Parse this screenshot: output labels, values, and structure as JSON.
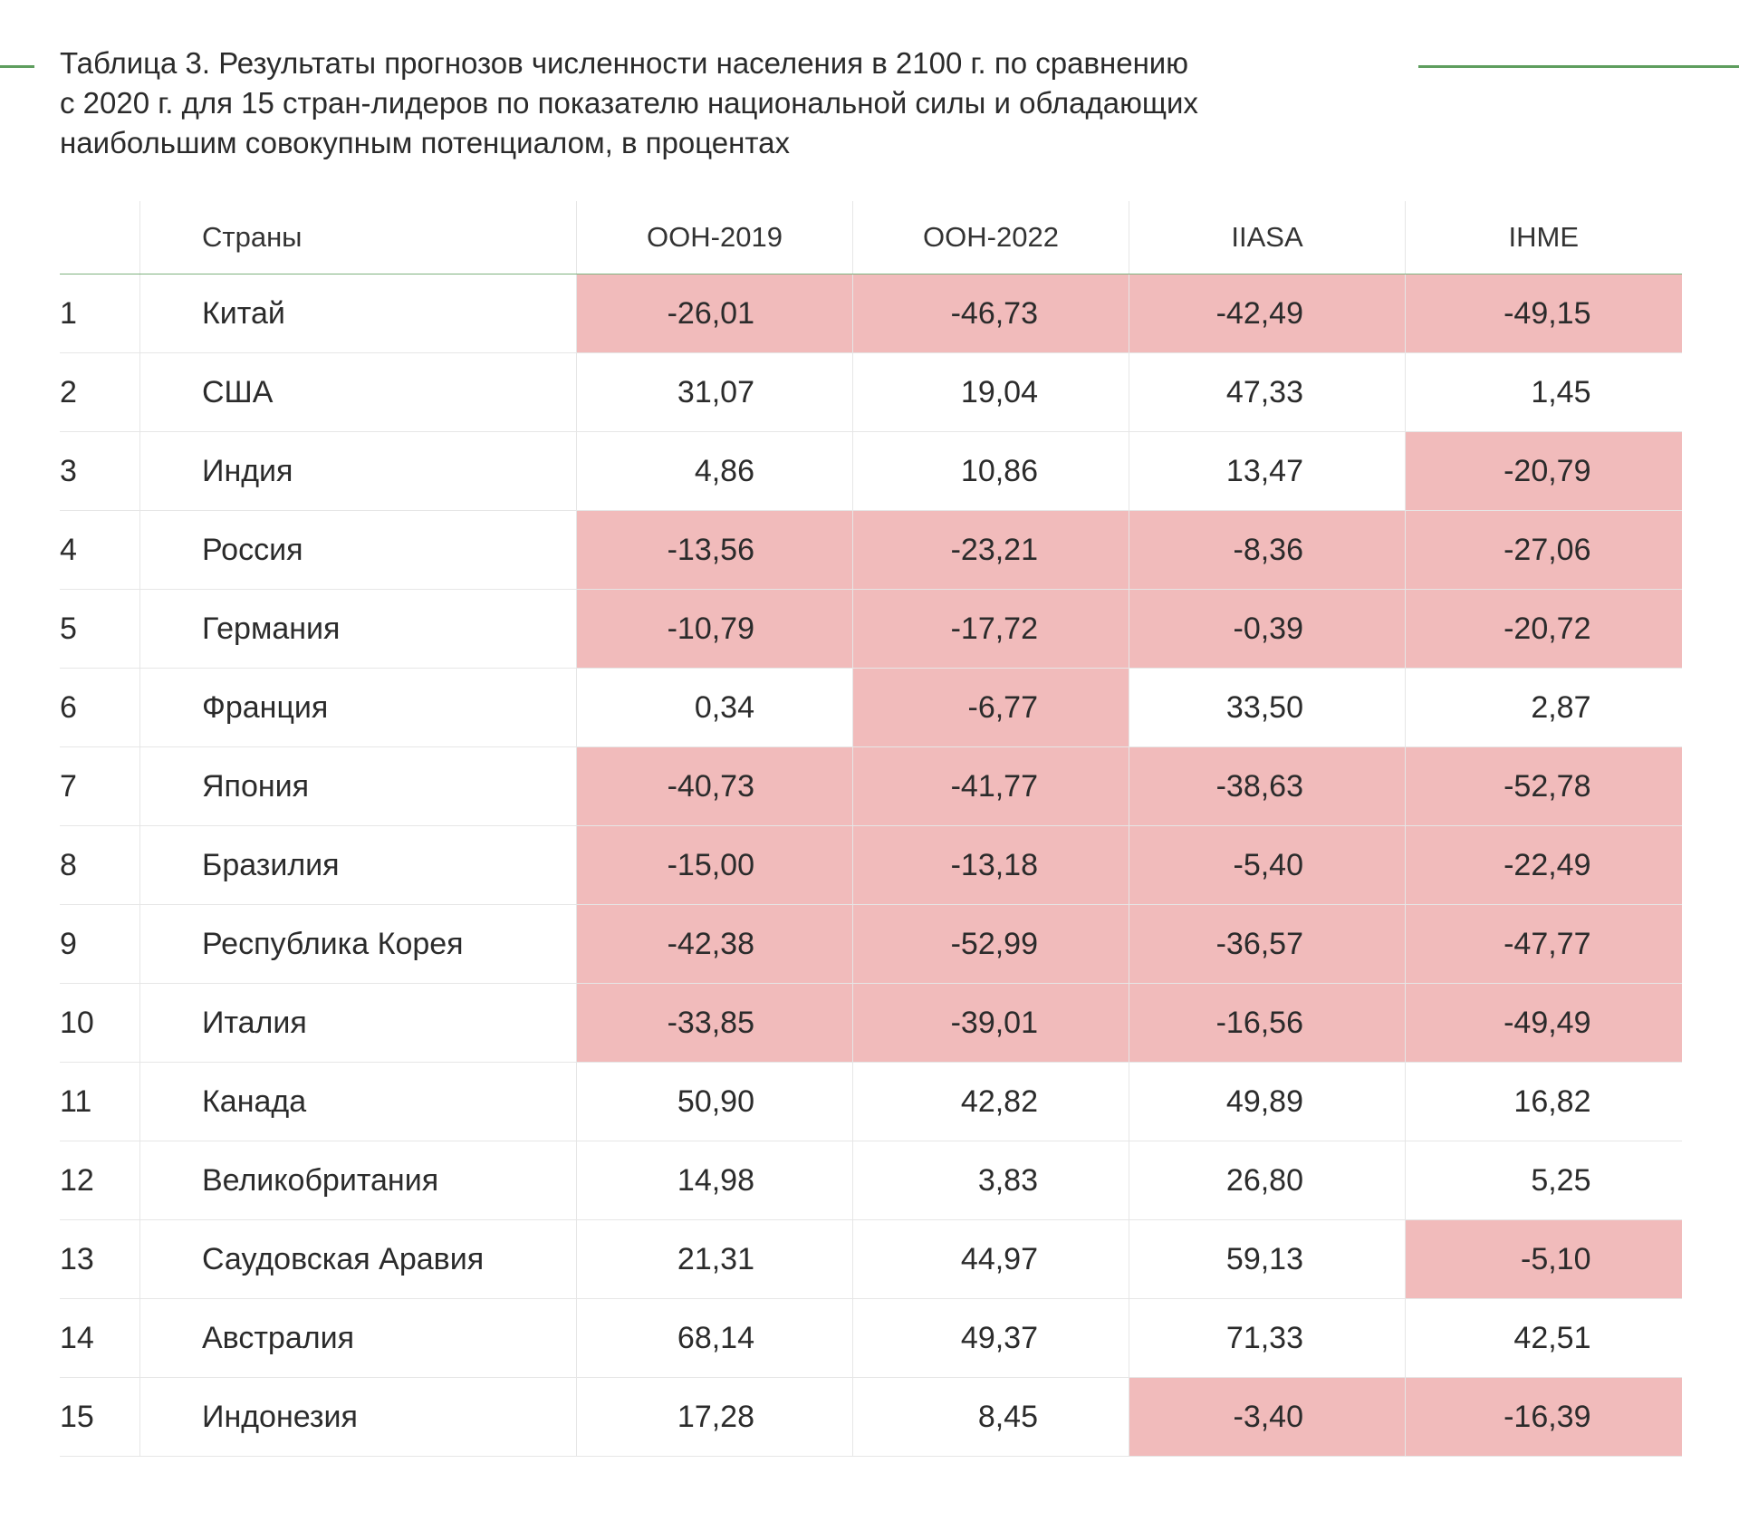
{
  "caption": {
    "line1": "Таблица 3. Результаты прогнозов численности населения в 2100 г. по сравнению",
    "line2": "с 2020 г. для 15 стран-лидеров по показателю национальной силы и обладающих",
    "line3": "наибольшим совокупным потенциалом, в процентах"
  },
  "colors": {
    "accent": "#5e9e5e",
    "negative_fill": "#f1bbbb",
    "grid": "#e6e6e6"
  },
  "table": {
    "headers": [
      "",
      "Страны",
      "ООН-2019",
      "ООН-2022",
      "IIASA",
      "IHME"
    ],
    "rows": [
      {
        "n": "1",
        "country": "Китай",
        "v": [
          "-26,01",
          "-46,73",
          "-42,49",
          "-49,15"
        ]
      },
      {
        "n": "2",
        "country": "США",
        "v": [
          "31,07",
          "19,04",
          "47,33",
          "1,45"
        ]
      },
      {
        "n": "3",
        "country": "Индия",
        "v": [
          "4,86",
          "10,86",
          "13,47",
          "-20,79"
        ]
      },
      {
        "n": "4",
        "country": "Россия",
        "v": [
          "-13,56",
          "-23,21",
          "-8,36",
          "-27,06"
        ]
      },
      {
        "n": "5",
        "country": "Германия",
        "v": [
          "-10,79",
          "-17,72",
          "-0,39",
          "-20,72"
        ]
      },
      {
        "n": "6",
        "country": "Франция",
        "v": [
          "0,34",
          "-6,77",
          "33,50",
          "2,87"
        ]
      },
      {
        "n": "7",
        "country": "Япония",
        "v": [
          "-40,73",
          "-41,77",
          "-38,63",
          "-52,78"
        ]
      },
      {
        "n": "8",
        "country": "Бразилия",
        "v": [
          "-15,00",
          "-13,18",
          "-5,40",
          "-22,49"
        ]
      },
      {
        "n": "9",
        "country": "Республика Корея",
        "v": [
          "-42,38",
          "-52,99",
          "-36,57",
          "-47,77"
        ]
      },
      {
        "n": "10",
        "country": "Италия",
        "v": [
          "-33,85",
          "-39,01",
          "-16,56",
          "-49,49"
        ]
      },
      {
        "n": "11",
        "country": "Канада",
        "v": [
          "50,90",
          "42,82",
          "49,89",
          "16,82"
        ]
      },
      {
        "n": "12",
        "country": "Великобритания",
        "v": [
          "14,98",
          "3,83",
          "26,80",
          "5,25"
        ]
      },
      {
        "n": "13",
        "country": "Саудовская Аравия",
        "v": [
          "21,31",
          "44,97",
          "59,13",
          "-5,10"
        ]
      },
      {
        "n": "14",
        "country": "Австралия",
        "v": [
          "68,14",
          "49,37",
          "71,33",
          "42,51"
        ]
      },
      {
        "n": "15",
        "country": "Индонезия",
        "v": [
          "17,28",
          "8,45",
          "-3,40",
          "-16,39"
        ]
      }
    ]
  }
}
